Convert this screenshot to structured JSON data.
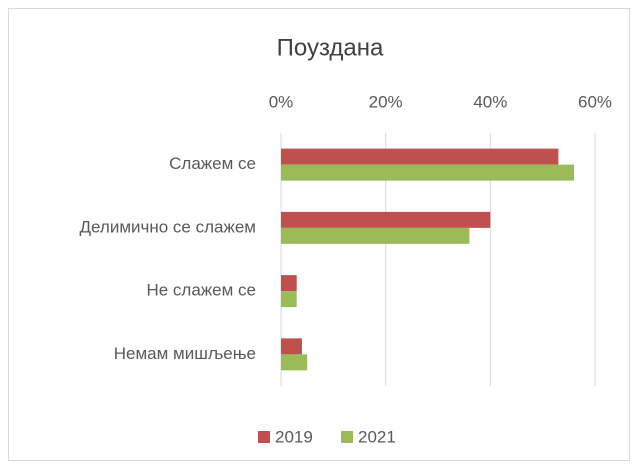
{
  "chart_data": {
    "type": "hbar",
    "title": "Поуздана",
    "categories": [
      "Слажем се",
      "Делимично се слажем",
      "Не слажем се",
      "Немам мишљење"
    ],
    "series": [
      {
        "name": "2019",
        "color": "#c0504d",
        "values": [
          53,
          40,
          3,
          4
        ]
      },
      {
        "name": "2021",
        "color": "#9bbb59",
        "values": [
          56,
          36,
          3,
          5
        ]
      }
    ],
    "xlim": [
      0,
      60
    ],
    "xticks": [
      {
        "value": 0,
        "label": "0%"
      },
      {
        "value": 20,
        "label": "20%"
      },
      {
        "value": 40,
        "label": "40%"
      },
      {
        "value": 60,
        "label": "60%"
      }
    ],
    "grid": true,
    "legend": "bottom"
  }
}
